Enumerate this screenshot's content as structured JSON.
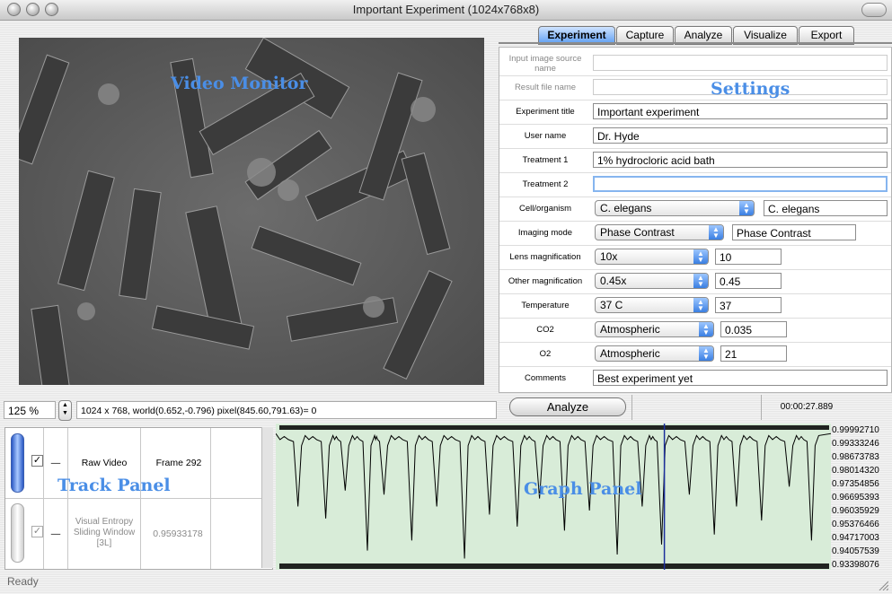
{
  "window": {
    "title": "Important Experiment (1024x768x8)"
  },
  "overlays": {
    "video_monitor": "Video Monitor",
    "settings": "Settings",
    "track_panel": "Track Panel",
    "graph_panel": "Graph Panel"
  },
  "tabs": [
    {
      "label": "Experiment",
      "active": true
    },
    {
      "label": "Capture"
    },
    {
      "label": "Analyze"
    },
    {
      "label": "Visualize"
    },
    {
      "label": "Export"
    }
  ],
  "settings": {
    "input_source": {
      "label": "Input image source name",
      "value": ""
    },
    "result_file": {
      "label": "Result file name",
      "value": ""
    },
    "experiment_title": {
      "label": "Experiment title",
      "value": "Important experiment"
    },
    "user_name": {
      "label": "User name",
      "value": "Dr. Hyde"
    },
    "treatment1": {
      "label": "Treatment 1",
      "value": "1% hydrocloric acid bath"
    },
    "treatment2": {
      "label": "Treatment 2",
      "value": ""
    },
    "cell_organism": {
      "label": "Cell/organism",
      "selected": "C. elegans",
      "value": "C. elegans"
    },
    "imaging_mode": {
      "label": "Imaging mode",
      "selected": "Phase Contrast",
      "value": "Phase Contrast"
    },
    "lens_mag": {
      "label": "Lens magnification",
      "selected": "10x",
      "value": "10"
    },
    "other_mag": {
      "label": "Other magnification",
      "selected": "0.45x",
      "value": "0.45"
    },
    "temperature": {
      "label": "Temperature",
      "selected": "37 C",
      "value": "37"
    },
    "co2": {
      "label": "CO2",
      "selected": "Atmospheric",
      "value": "0.035"
    },
    "o2": {
      "label": "O2",
      "selected": "Atmospheric",
      "value": "21"
    },
    "comments": {
      "label": "Comments",
      "value": "Best experiment yet"
    }
  },
  "status": {
    "zoom": "125 %",
    "coords": "1024 x 768, world(0.652,-0.796) pixel(845.60,791.63)=  0",
    "analyze_button": "Analyze",
    "elapsed": "00:00:27.889",
    "ready": "Ready"
  },
  "tracks": [
    {
      "name": "Raw Video",
      "value": "Frame 292",
      "checked": true,
      "dash": "—"
    },
    {
      "name": "Visual Entropy Sliding Window [3L]",
      "value": "0.95933178",
      "checked": true,
      "dash": "—"
    }
  ],
  "graph": {
    "y_ticks": [
      "0.99992710",
      "0.99333246",
      "0.98673783",
      "0.98014320",
      "0.97354856",
      "0.96695393",
      "0.96035929",
      "0.95376466",
      "0.94717003",
      "0.94057539",
      "0.93398076"
    ],
    "dips": [
      [
        0.04,
        0.962
      ],
      [
        0.09,
        0.956
      ],
      [
        0.125,
        0.97
      ],
      [
        0.165,
        0.94
      ],
      [
        0.195,
        0.968
      ],
      [
        0.245,
        0.945
      ],
      [
        0.29,
        0.962
      ],
      [
        0.34,
        0.936
      ],
      [
        0.385,
        0.958
      ],
      [
        0.435,
        0.952
      ],
      [
        0.475,
        0.966
      ],
      [
        0.52,
        0.95
      ],
      [
        0.565,
        0.96
      ],
      [
        0.615,
        0.938
      ],
      [
        0.66,
        0.962
      ],
      [
        0.695,
        0.943
      ],
      [
        0.745,
        0.968
      ],
      [
        0.79,
        0.948
      ],
      [
        0.83,
        0.962
      ],
      [
        0.875,
        0.955
      ],
      [
        0.925,
        0.972
      ],
      [
        0.965,
        0.945
      ]
    ],
    "cursor_frac": 0.7,
    "line_color": "#000000",
    "cursor_color": "#1c2f9c",
    "bg_color": "#d8ecd8"
  }
}
